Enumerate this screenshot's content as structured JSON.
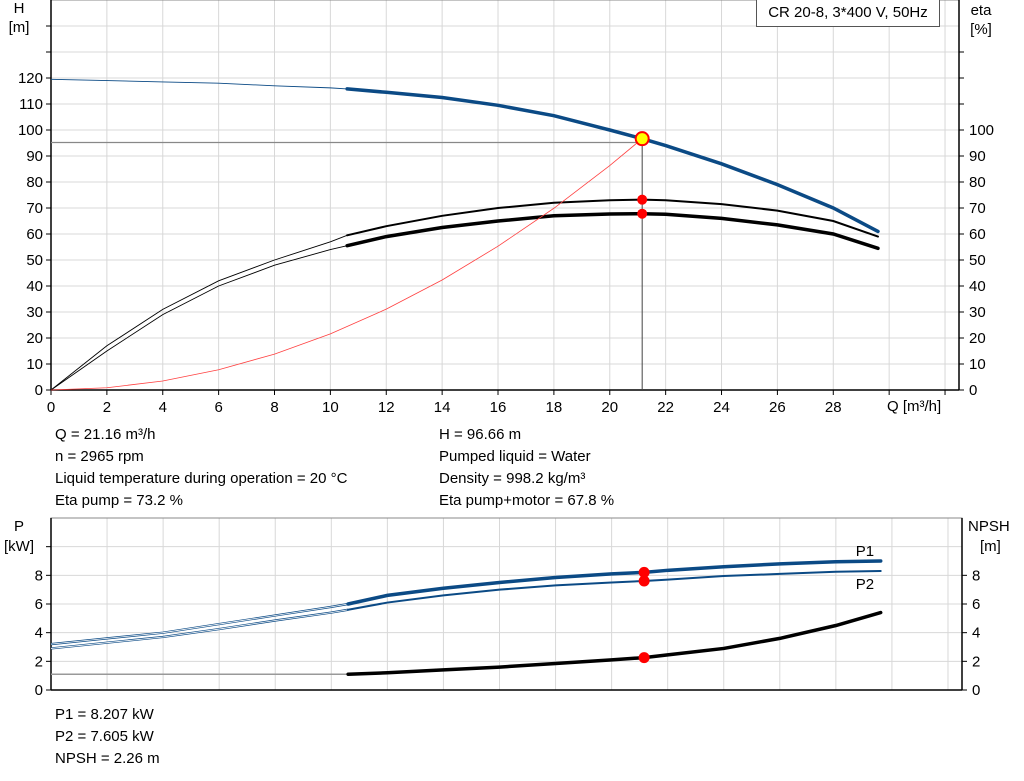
{
  "title": "CR 20-8, 3*400 V, 50Hz",
  "chart_data": [
    {
      "type": "line",
      "title": "CR 20-8, 3*400 V, 50Hz",
      "xlabel": "Q [m³/h]",
      "ylabel": "H [m]",
      "ylabel_right": "eta [%]",
      "xlim": [
        0,
        32.5
      ],
      "ylim": [
        0,
        150
      ],
      "ylim_right": [
        0,
        150
      ],
      "grid": true,
      "x_ticks": [
        0,
        2,
        4,
        6,
        8,
        10,
        12,
        14,
        16,
        18,
        20,
        22,
        24,
        26,
        28
      ],
      "y_ticks": [
        0,
        10,
        20,
        30,
        40,
        50,
        60,
        70,
        80,
        90,
        100,
        110,
        120
      ],
      "y_ticks_right": [
        0,
        10,
        20,
        30,
        40,
        50,
        60,
        70,
        80,
        90,
        100
      ],
      "series": [
        {
          "key": "H",
          "axis": "left",
          "color": "#0b4a85",
          "x": [
            0,
            2,
            4,
            6,
            8,
            10,
            10.6,
            12,
            14,
            16,
            18,
            20,
            21.16,
            22,
            24,
            26,
            28,
            29.6
          ],
          "y": [
            119.5,
            119,
            118.5,
            118,
            117,
            116.2,
            115.8,
            114.5,
            112.5,
            109.5,
            105.5,
            100,
            96.66,
            94,
            87,
            79,
            70,
            61
          ]
        },
        {
          "key": "eta_pump",
          "axis": "right",
          "color": "#000000",
          "x": [
            0,
            2,
            4,
            6,
            8,
            10,
            10.6,
            12,
            14,
            16,
            18,
            20,
            21.16,
            22,
            24,
            26,
            28,
            29.6
          ],
          "y": [
            0,
            17,
            31,
            42,
            50,
            57,
            59.5,
            63,
            67,
            70,
            72,
            73,
            73.2,
            73,
            71.5,
            69,
            65,
            59
          ]
        },
        {
          "key": "eta_total",
          "axis": "right",
          "color": "#000000",
          "x": [
            0,
            2,
            4,
            6,
            8,
            10,
            10.6,
            12,
            14,
            16,
            18,
            20,
            21.16,
            22,
            24,
            26,
            28,
            29.6
          ],
          "y": [
            0,
            15,
            29,
            40,
            48,
            54,
            55.5,
            59,
            62.5,
            65,
            67,
            67.7,
            67.8,
            67.6,
            66,
            63.5,
            60,
            54.5
          ]
        },
        {
          "key": "system",
          "axis": "left",
          "color": "#ff4040",
          "x": [
            0,
            2,
            4,
            6,
            8,
            10,
            12,
            14,
            16,
            18,
            20,
            21.16
          ],
          "y": [
            0,
            0.86,
            3.45,
            7.8,
            13.8,
            21.6,
            31.1,
            42.3,
            55.3,
            69.9,
            86.3,
            96.66
          ]
        }
      ],
      "duty_point": {
        "Q": 21.16,
        "H": 96.66,
        "eta_pump": 73.2,
        "eta_total": 67.8
      },
      "thick_from_q": 10.6
    },
    {
      "type": "line",
      "xlabel": "",
      "ylabel": "P [kW]",
      "ylabel_right": "NPSH [m]",
      "xlim": [
        0,
        32.5
      ],
      "ylim": [
        0,
        12
      ],
      "ylim_right": [
        0,
        12
      ],
      "grid": true,
      "y_ticks": [
        0,
        2,
        4,
        6,
        8
      ],
      "y_ticks_right": [
        0,
        2,
        4,
        6,
        8
      ],
      "series": [
        {
          "key": "P1",
          "name": "P1",
          "axis": "left",
          "color": "#0b4a85",
          "x": [
            0,
            2,
            4,
            6,
            8,
            10,
            10.6,
            12,
            14,
            16,
            18,
            20,
            21.16,
            22,
            24,
            26,
            28,
            29.6
          ],
          "y": [
            3.2,
            3.6,
            4.0,
            4.6,
            5.2,
            5.8,
            6.0,
            6.6,
            7.1,
            7.5,
            7.85,
            8.1,
            8.207,
            8.35,
            8.6,
            8.8,
            8.95,
            9.0
          ]
        },
        {
          "key": "P2",
          "name": "P2",
          "axis": "left",
          "color": "#0b4a85",
          "x": [
            0,
            2,
            4,
            6,
            8,
            10,
            10.6,
            12,
            14,
            16,
            18,
            20,
            21.16,
            22,
            24,
            26,
            28,
            29.6
          ],
          "y": [
            2.9,
            3.3,
            3.7,
            4.25,
            4.85,
            5.4,
            5.6,
            6.1,
            6.6,
            7.0,
            7.3,
            7.5,
            7.605,
            7.7,
            7.95,
            8.1,
            8.25,
            8.3
          ]
        },
        {
          "key": "NPSH",
          "axis": "right",
          "color": "#000000",
          "x": [
            0,
            2,
            4,
            6,
            8,
            10,
            10.6,
            12,
            14,
            16,
            18,
            20,
            21.16,
            22,
            24,
            26,
            28,
            29.6
          ],
          "y": [
            1.1,
            1.1,
            1.1,
            1.1,
            1.1,
            1.1,
            1.1,
            1.2,
            1.4,
            1.6,
            1.85,
            2.1,
            2.26,
            2.45,
            2.9,
            3.6,
            4.5,
            5.4
          ]
        }
      ],
      "duty_point": {
        "Q": 21.16,
        "P1": 8.207,
        "P2": 7.605,
        "NPSH": 2.26
      },
      "thick_from_q": 10.6
    }
  ],
  "top_axes": {
    "h_label": "H",
    "h_unit": "[m]",
    "eta_label": "eta",
    "eta_unit": "[%]",
    "q_label": "Q [m³/h]"
  },
  "bottom_axes": {
    "p_label": "P",
    "p_unit": "[kW]",
    "npsh_label": "NPSH",
    "npsh_unit": "[m]"
  },
  "info_left": [
    "Q = 21.16 m³/h",
    "n = 2965 rpm",
    "Liquid temperature during operation = 20 °C",
    "Eta pump = 73.2 %"
  ],
  "info_right": [
    "H = 96.66 m",
    "Pumped liquid = Water",
    "Density = 998.2 kg/m³",
    "Eta pump+motor = 67.8 %"
  ],
  "info_bottom": [
    "P1 = 8.207 kW",
    "P2 = 7.605 kW",
    "NPSH = 2.26 m"
  ]
}
